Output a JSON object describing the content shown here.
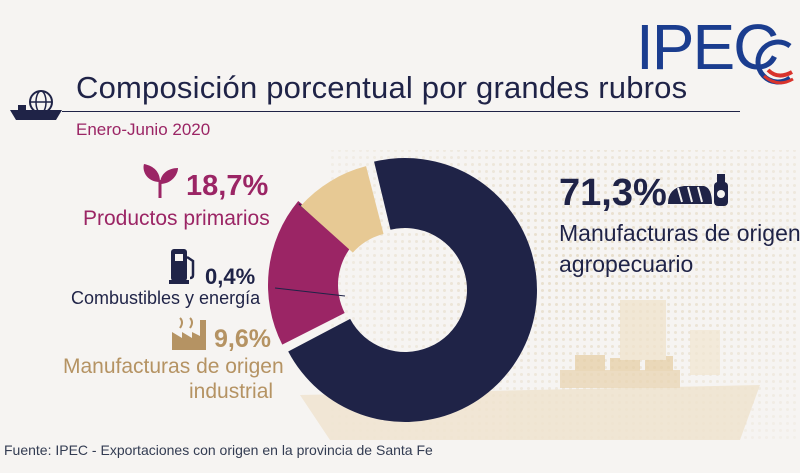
{
  "header": {
    "title": "Composición porcentual por grandes rubros",
    "subtitle": "Enero-Junio 2020",
    "logo_text": "IPEC"
  },
  "footer": {
    "source": "Fuente: IPEC - Exportaciones con origen en la provincia de Santa Fe"
  },
  "icons": {
    "ship": "cargo-ship-globe-icon",
    "primarios": "sprout-icon",
    "combustibles": "fuel-pump-icon",
    "industrial": "factory-icon",
    "agropecuario": "bread-bottle-icon"
  },
  "colors": {
    "navy": "#1f2347",
    "magenta": "#9b2565",
    "tan": "#e7c994",
    "gold_text": "#b59363",
    "logo_blue": "#1b3d8f",
    "logo_red": "#d9332c"
  },
  "chart_data": {
    "type": "pie",
    "title": "Composición porcentual por grandes rubros",
    "subtitle": "Enero-Junio 2020",
    "unit": "%",
    "slices": [
      {
        "name": "Manufacturas de origen agropecuario",
        "value": 71.3,
        "label": "71,3%",
        "color": "#1f2347"
      },
      {
        "name": "Productos primarios",
        "value": 18.7,
        "label": "18,7%",
        "color": "#9b2565"
      },
      {
        "name": "Combustibles y energía",
        "value": 0.4,
        "label": "0,4%",
        "color": "#1f2347"
      },
      {
        "name": "Manufacturas de origen industrial",
        "value": 9.6,
        "label": "9,6%",
        "color": "#e7c994"
      }
    ],
    "labels": {
      "moa_line1": "Manufacturas de origen",
      "moa_line2": "agropecuario",
      "moi_line1": "Manufacturas de origen",
      "moi_line2": "industrial"
    }
  }
}
